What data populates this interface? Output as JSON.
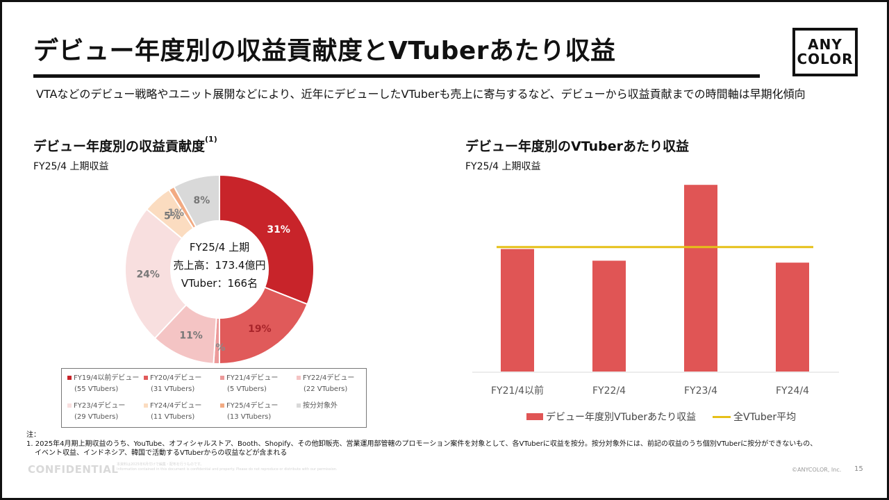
{
  "page": {
    "title": "デビュー年度別の収益貢献度とVTuberあたり収益",
    "logo_line1": "ANY",
    "logo_line2": "COLOR",
    "lead": "VTAなどのデビュー戦略やユニット展開などにより、近年にデビューしたVTuberも売上に寄与するなど、デビューから収益貢献までの時間軸は早期化傾向",
    "confidential": "CONFIDENTIAL",
    "tiny_line1": "本資料は2025年6月付けで編集・配布を行うものです。",
    "tiny_line2": "Information contained in this document is confidential and property. Please do not reproduce or distribute with our permission.",
    "copyright": "©ANYCOLOR, Inc.",
    "page_number": "15"
  },
  "left": {
    "title": "デビュー年度別の収益貢献度",
    "title_sup": "(1)",
    "subtitle": "FY25/4 上期収益",
    "center_line1": "FY25/4 上期",
    "center_line2": "売上高：173.4億円",
    "center_line3": "VTuber：166名"
  },
  "right": {
    "title": "デビュー年度別のVTuberあたり収益",
    "subtitle": "FY25/4 上期収益",
    "legend_bar": "デビュー年度別VTuberあたり収益",
    "legend_line": "全VTuber平均"
  },
  "notes": {
    "head": "注：",
    "line1": "1. 2025年4月期上期収益のうち、YouTube、オフィシャルストア、Booth、Shopify、その他卸販売、営業運用部管轄のプロモーション案件を対象として、各VTuberに収益を按分。按分対象外には、前記の収益のうち個別VTuberに按分ができないもの、",
    "line2": "イベント収益、インドネシア、韓国で活動するVTuberからの収益などが含まれる"
  },
  "chart_data": [
    {
      "type": "pie",
      "subtype": "donut",
      "slices": [
        {
          "name": "FY19/4以前デビュー",
          "count": "(55 VTubers)",
          "value": 31,
          "label": "31%",
          "color": "#c8242a"
        },
        {
          "name": "FY20/4デビュー",
          "count": "(31 VTubers)",
          "value": 19,
          "label": "19%",
          "color": "#e05a5a"
        },
        {
          "name": "FY21/4デビュー",
          "count": "(5 VTubers)",
          "value": 1,
          "label": "1%",
          "color": "#ec9a9a"
        },
        {
          "name": "FY22/4デビュー",
          "count": "(22 VTubers)",
          "value": 11,
          "label": "11%",
          "color": "#f4c4c4"
        },
        {
          "name": "FY23/4デビュー",
          "count": "(29 VTubers)",
          "value": 24,
          "label": "24%",
          "color": "#f8dfdf"
        },
        {
          "name": "FY24/4デビュー",
          "count": "(11 VTubers)",
          "value": 5,
          "label": "5%",
          "color": "#fbdcc0"
        },
        {
          "name": "FY25/4デビュー",
          "count": "(13 VTubers)",
          "value": 1,
          "label": "1%",
          "color": "#f2aa82"
        },
        {
          "name": "按分対象外",
          "count": "",
          "value": 8,
          "label": "8%",
          "color": "#d9d9d9"
        }
      ]
    },
    {
      "type": "bar",
      "categories": [
        "FY21/4以前",
        "FY22/4",
        "FY23/4",
        "FY24/4"
      ],
      "values": [
        63,
        57,
        96,
        56
      ],
      "value_units": "relative (no axis printed)",
      "ylim": [
        0,
        100
      ],
      "average_line": 64,
      "bar_color": "#e05555",
      "line_color": "#e6c018",
      "grid": false
    }
  ]
}
